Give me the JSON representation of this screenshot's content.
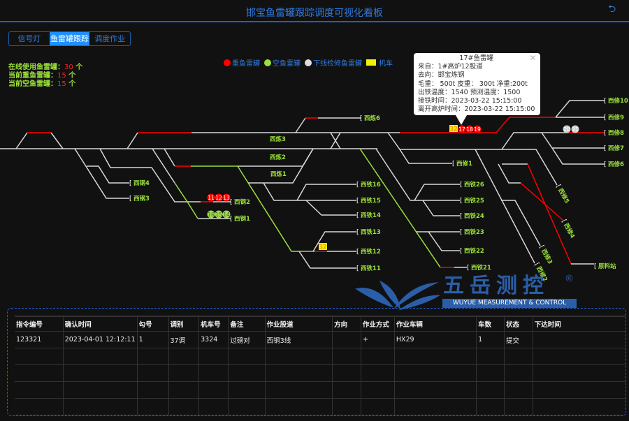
{
  "header": {
    "title": "邯宝鱼雷罐跟踪调度可视化看板",
    "back_icon": "return-icon"
  },
  "tabs": [
    {
      "label": "信号灯",
      "active": false
    },
    {
      "label": "鱼雷罐跟踪",
      "active": true
    },
    {
      "label": "调度作业",
      "active": false
    }
  ],
  "stats": [
    {
      "label": "在线使用鱼雷罐：",
      "value": "30",
      "unit": "个"
    },
    {
      "label": "当前重鱼雷罐：",
      "value": "15",
      "unit": "个"
    },
    {
      "label": "当前空鱼雷罐：",
      "value": "15",
      "unit": "个"
    }
  ],
  "legend": [
    {
      "label": "重鱼雷罐",
      "color": "#ff0000"
    },
    {
      "label": "空鱼雷罐",
      "color": "#9be03a"
    },
    {
      "label": "下线检修鱼雷罐",
      "color": "#dddddd"
    },
    {
      "label": "机车",
      "color": "#f4f000"
    }
  ],
  "tooltip": {
    "title": "17#鱼雷罐",
    "lines": [
      "来自：1#高炉12股道",
      "去向：邯宝炼钢",
      "毛重： 500t  皮重： 300t  净重:200t",
      "出铁温度：1540  预测温度：1500",
      "接铁时间：2023-03-22 15:15:00",
      "离开高炉时间：2023-03-22 15:15:00"
    ]
  },
  "tracks": {
    "labels": [
      "西钢4",
      "西钢3",
      "西钢2",
      "西钢1",
      "西炼3",
      "西炼2",
      "西炼1",
      "西炼6",
      "西铁16",
      "西铁15",
      "西铁14",
      "西铁13",
      "西铁12",
      "西铁11",
      "西修1",
      "西铁26",
      "西铁25",
      "西铁24",
      "西铁23",
      "西铁22",
      "西铁21",
      "西修10",
      "西修9",
      "西修8",
      "西修7",
      "西修6",
      "西修5",
      "西修4",
      "西修3",
      "西修2",
      "原料站"
    ],
    "tanks": [
      {
        "number": "11",
        "status": "heavy"
      },
      {
        "number": "12",
        "status": "heavy"
      },
      {
        "number": "13",
        "status": "heavy"
      },
      {
        "number": "16",
        "status": "empty"
      },
      {
        "number": "15",
        "status": "empty"
      },
      {
        "number": "14",
        "status": "empty"
      },
      {
        "number": "17",
        "status": "heavy"
      },
      {
        "number": "18",
        "status": "heavy"
      },
      {
        "number": "19",
        "status": "heavy"
      },
      {
        "number": "20",
        "status": "offline"
      },
      {
        "number": "21",
        "status": "offline"
      }
    ],
    "locomotives": [
      "32",
      "32"
    ]
  },
  "logo": {
    "cn": "五岳测控",
    "en": "WUYUE MEASUREMENT & CONTROL",
    "reg": "®"
  },
  "table": {
    "columns": [
      "指令编号",
      "确认时间",
      "勾号",
      "调别",
      "机车号",
      "备注",
      "作业股道",
      "方向",
      "作业方式",
      "作业车辆",
      "车数",
      "状态",
      "下达时间"
    ],
    "rows": [
      [
        "123321",
        "2023-04-01 12:12:11",
        "1",
        "37调",
        "3324",
        "过磅对",
        "西钢3线",
        "",
        "+",
        "HX29",
        "1",
        "提交",
        ""
      ],
      [
        "",
        "",
        "",
        "",
        "",
        "",
        "",
        "",
        "",
        "",
        "",
        "",
        ""
      ],
      [
        "",
        "",
        "",
        "",
        "",
        "",
        "",
        "",
        "",
        "",
        "",
        "",
        ""
      ],
      [
        "",
        "",
        "",
        "",
        "",
        "",
        "",
        "",
        "",
        "",
        "",
        "",
        ""
      ],
      [
        "",
        "",
        "",
        "",
        "",
        "",
        "",
        "",
        "",
        "",
        "",
        "",
        ""
      ]
    ]
  }
}
